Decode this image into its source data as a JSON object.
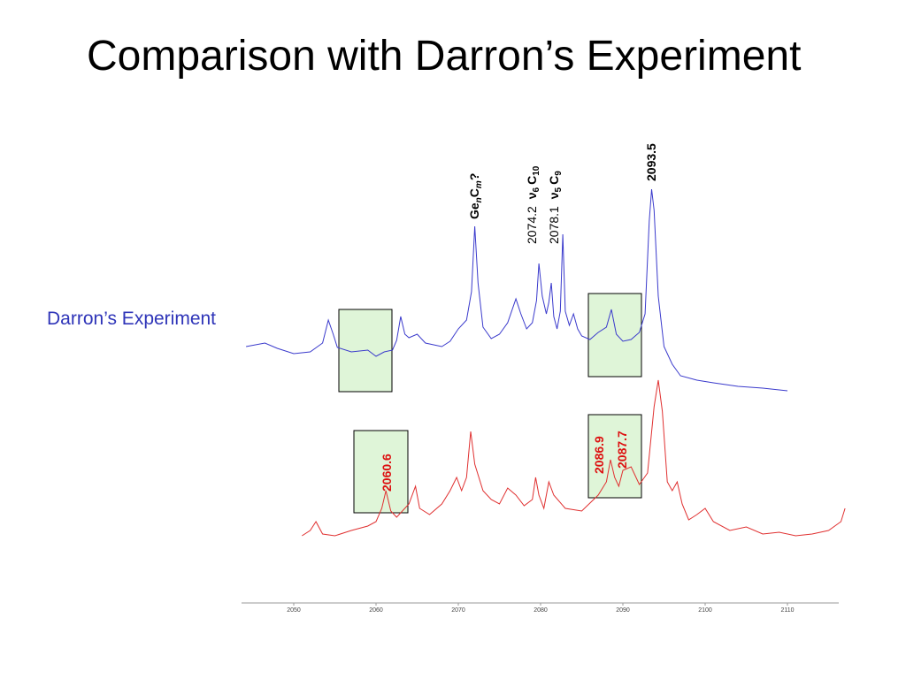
{
  "slide": {
    "title": "Comparison with Darron’s Experiment",
    "series_label": "Darron’s Experiment"
  },
  "colors": {
    "darron_trace": "#3a3acc",
    "other_trace": "#e03030",
    "box_fill": "#dff5d8",
    "annotation_black": "#000000",
    "annotation_red": "#dd1111"
  },
  "chart_data": {
    "type": "line",
    "xlim": [
      2045,
      2117
    ],
    "ticks": [
      2050,
      2060,
      2070,
      2080,
      2090,
      2100,
      2110
    ],
    "tick_labels": [
      "2050",
      "2060",
      "2070",
      "2080",
      "2090",
      "2100",
      "2110"
    ],
    "series": [
      {
        "name": "Darron’s Experiment",
        "color": "#3a3acc",
        "points": [
          [
            2044.2,
            392
          ],
          [
            2046.5,
            388
          ],
          [
            2048,
            394
          ],
          [
            2050,
            400
          ],
          [
            2052,
            398
          ],
          [
            2053.5,
            388
          ],
          [
            2054.2,
            362
          ],
          [
            2054.8,
            378
          ],
          [
            2055.3,
            393
          ],
          [
            2057,
            398
          ],
          [
            2059,
            396
          ],
          [
            2060,
            403
          ],
          [
            2061,
            398
          ],
          [
            2062,
            396
          ],
          [
            2062.5,
            385
          ],
          [
            2063,
            358
          ],
          [
            2063.5,
            378
          ],
          [
            2064,
            382
          ],
          [
            2065,
            378
          ],
          [
            2066,
            388
          ],
          [
            2068,
            392
          ],
          [
            2069,
            386
          ],
          [
            2070,
            372
          ],
          [
            2071,
            362
          ],
          [
            2071.6,
            330
          ],
          [
            2072,
            256
          ],
          [
            2072.4,
            320
          ],
          [
            2073,
            370
          ],
          [
            2074,
            383
          ],
          [
            2075,
            378
          ],
          [
            2076,
            365
          ],
          [
            2077,
            338
          ],
          [
            2077.6,
            355
          ],
          [
            2078.3,
            372
          ],
          [
            2079,
            365
          ],
          [
            2079.5,
            340
          ],
          [
            2079.8,
            298
          ],
          [
            2080.2,
            335
          ],
          [
            2080.7,
            355
          ],
          [
            2081,
            342
          ],
          [
            2081.3,
            320
          ],
          [
            2081.6,
            358
          ],
          [
            2082,
            372
          ],
          [
            2082.4,
            352
          ],
          [
            2082.7,
            265
          ],
          [
            2083,
            352
          ],
          [
            2083.5,
            368
          ],
          [
            2084,
            355
          ],
          [
            2084.5,
            372
          ],
          [
            2085,
            380
          ],
          [
            2086,
            384
          ],
          [
            2087,
            376
          ],
          [
            2088,
            370
          ],
          [
            2088.6,
            350
          ],
          [
            2089.2,
            378
          ],
          [
            2090,
            386
          ],
          [
            2091,
            384
          ],
          [
            2092,
            376
          ],
          [
            2092.7,
            355
          ],
          [
            2093.2,
            250
          ],
          [
            2093.5,
            214
          ],
          [
            2093.8,
            238
          ],
          [
            2094.3,
            335
          ],
          [
            2095,
            392
          ],
          [
            2096,
            412
          ],
          [
            2097,
            425
          ],
          [
            2099,
            430
          ],
          [
            2101,
            433
          ],
          [
            2104,
            437
          ],
          [
            2107,
            439
          ],
          [
            2110,
            442
          ]
        ]
      },
      {
        "name": "",
        "color": "#e03030",
        "points": [
          [
            2051,
            606
          ],
          [
            2052,
            600
          ],
          [
            2052.7,
            590
          ],
          [
            2053.5,
            604
          ],
          [
            2055,
            606
          ],
          [
            2057,
            600
          ],
          [
            2059,
            595
          ],
          [
            2060,
            590
          ],
          [
            2060.7,
            575
          ],
          [
            2061.2,
            555
          ],
          [
            2061.8,
            578
          ],
          [
            2062.5,
            585
          ],
          [
            2063,
            580
          ],
          [
            2064,
            570
          ],
          [
            2064.8,
            550
          ],
          [
            2065.3,
            575
          ],
          [
            2066.5,
            582
          ],
          [
            2068,
            570
          ],
          [
            2069,
            555
          ],
          [
            2069.8,
            540
          ],
          [
            2070.4,
            555
          ],
          [
            2071,
            540
          ],
          [
            2071.5,
            488
          ],
          [
            2072,
            525
          ],
          [
            2073,
            555
          ],
          [
            2074,
            565
          ],
          [
            2075,
            570
          ],
          [
            2076,
            552
          ],
          [
            2077,
            560
          ],
          [
            2078,
            572
          ],
          [
            2079,
            565
          ],
          [
            2079.4,
            540
          ],
          [
            2079.8,
            560
          ],
          [
            2080.4,
            575
          ],
          [
            2081,
            545
          ],
          [
            2081.6,
            560
          ],
          [
            2083,
            575
          ],
          [
            2085,
            578
          ],
          [
            2087,
            560
          ],
          [
            2088,
            545
          ],
          [
            2088.5,
            520
          ],
          [
            2089,
            540
          ],
          [
            2089.5,
            550
          ],
          [
            2090,
            532
          ],
          [
            2091,
            528
          ],
          [
            2092,
            548
          ],
          [
            2093,
            535
          ],
          [
            2093.8,
            460
          ],
          [
            2094.3,
            430
          ],
          [
            2094.8,
            465
          ],
          [
            2095.4,
            545
          ],
          [
            2096,
            555
          ],
          [
            2096.6,
            545
          ],
          [
            2097.2,
            570
          ],
          [
            2098,
            588
          ],
          [
            2099,
            582
          ],
          [
            2100,
            575
          ],
          [
            2101,
            590
          ],
          [
            2103,
            600
          ],
          [
            2105,
            596
          ],
          [
            2107,
            604
          ],
          [
            2109,
            602
          ],
          [
            2111,
            606
          ],
          [
            2113,
            604
          ],
          [
            2115,
            600
          ],
          [
            2116.5,
            590
          ],
          [
            2117,
            575
          ]
        ]
      }
    ],
    "annotations": {
      "black": [
        {
          "text": "2093.5",
          "x": 2093.5
        },
        {
          "text": "GenCm?",
          "x": 2072
        },
        {
          "text": "2074.2 ν6 C10",
          "x": 2079.8
        },
        {
          "text": "2078.1 ν5 C9",
          "x": 2082.7
        }
      ],
      "red": [
        {
          "text": "2060.6",
          "x": 2060.6
        },
        {
          "text": "2086.9",
          "x": 2086.9
        },
        {
          "text": "2087.7",
          "x": 2087.7
        }
      ]
    }
  }
}
